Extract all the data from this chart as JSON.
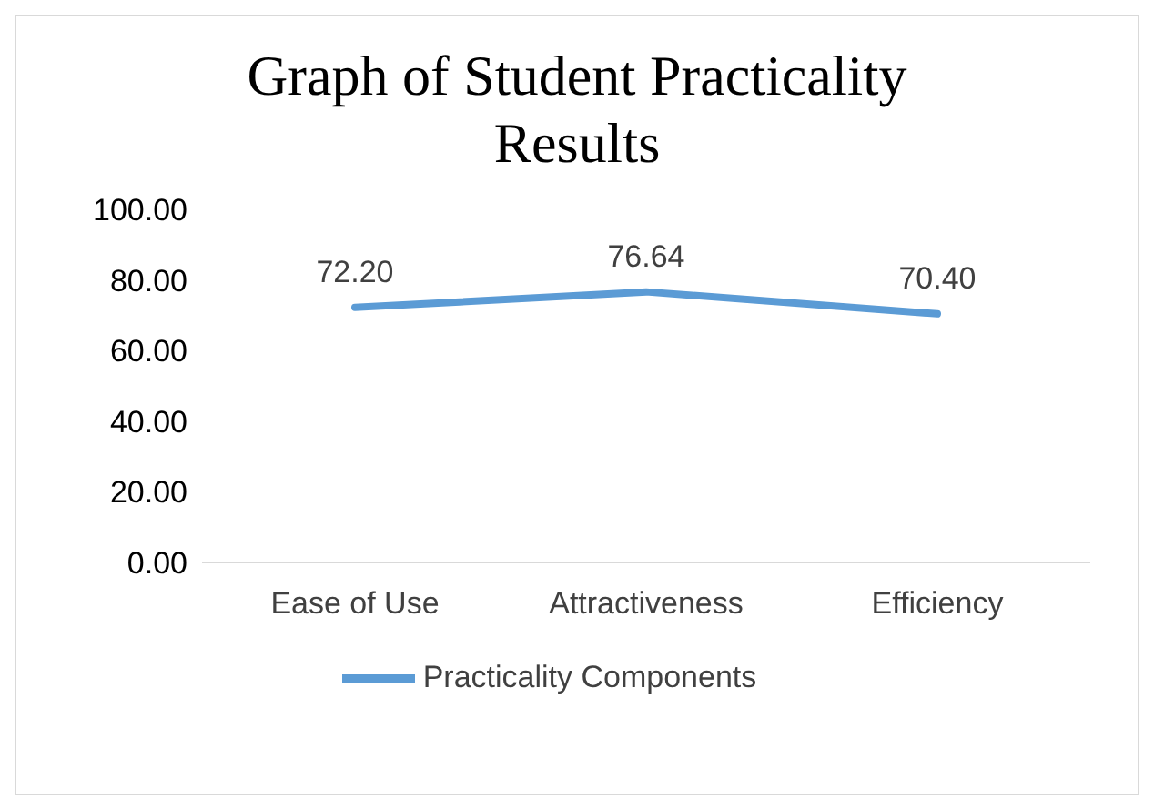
{
  "chart_data": {
    "type": "line",
    "title": "Graph of Student Practicality Results",
    "categories": [
      "Ease of Use",
      "Attractiveness",
      "Efficiency"
    ],
    "series": [
      {
        "name": "Practicality Components",
        "color": "#5b9bd5",
        "values": [
          72.2,
          76.64,
          70.4
        ],
        "value_labels": [
          "72.20",
          "76.64",
          "70.40"
        ]
      }
    ],
    "ylim": [
      0,
      100
    ],
    "yticks": [
      {
        "value": 0,
        "label": "0.00"
      },
      {
        "value": 20,
        "label": "20.00"
      },
      {
        "value": 40,
        "label": "40.00"
      },
      {
        "value": 60,
        "label": "60.00"
      },
      {
        "value": 80,
        "label": "80.00"
      },
      {
        "value": 100,
        "label": "100.00"
      }
    ],
    "grid": false,
    "legend": "bottom",
    "marker": "none",
    "line_style": "solid"
  }
}
